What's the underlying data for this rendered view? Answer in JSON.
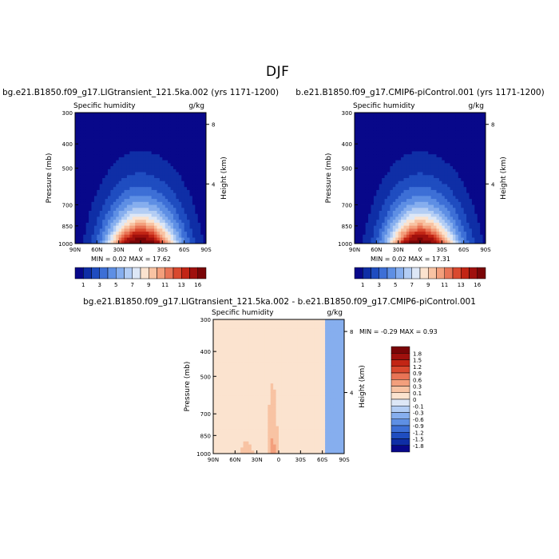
{
  "page": {
    "title": "DJF"
  },
  "chart_data": [
    {
      "type": "heatmap",
      "id": "panel1",
      "title": "bg.e21.B1850.f09_g17.LIGtransient_121.5ka.002 (yrs 1171-1200)",
      "subtitle_left": "Specific humidity",
      "subtitle_right": "g/kg",
      "ylabel": "Pressure (mb)",
      "y2label": "Height (km)",
      "x_ticks": [
        "90N",
        "60N",
        "30N",
        "0",
        "30S",
        "60S",
        "90S"
      ],
      "y_ticks": [
        "300",
        "400",
        "500",
        "700",
        "850",
        "1000"
      ],
      "y2_ticks": [
        "8",
        "4"
      ],
      "stats": {
        "min_label": "MIN =",
        "min": "0.02",
        "max_label": "MAX =",
        "max": "17.62"
      },
      "colorbar": {
        "labels": [
          "1",
          "3",
          "5",
          "7",
          "9",
          "11",
          "13",
          "16"
        ],
        "colors": [
          "#08088a",
          "#0f2ea6",
          "#1f4dc0",
          "#3d6fd6",
          "#5e8fe4",
          "#86aeee",
          "#b3cdf4",
          "#dde7f6",
          "#fbe3cf",
          "#f8c3a3",
          "#f39f7c",
          "#e87456",
          "#d9492f",
          "#c22515",
          "#a0100d",
          "#7a0507"
        ]
      },
      "field": {
        "peak": 17.62,
        "lat_center": 0,
        "width_surface_deg": 48,
        "scale_height_frac": 0.24
      }
    },
    {
      "type": "heatmap",
      "id": "panel2",
      "title": "b.e21.B1850.f09_g17.CMIP6-piControl.001 (yrs 1171-1200)",
      "subtitle_left": "Specific humidity",
      "subtitle_right": "g/kg",
      "ylabel": "Pressure (mb)",
      "y2label": "Height (km)",
      "x_ticks": [
        "90N",
        "60N",
        "30N",
        "0",
        "30S",
        "60S",
        "90S"
      ],
      "y_ticks": [
        "300",
        "400",
        "500",
        "700",
        "850",
        "1000"
      ],
      "y2_ticks": [
        "8",
        "4"
      ],
      "stats": {
        "min_label": "MIN =",
        "min": "0.02",
        "max_label": "MAX =",
        "max": "17.31"
      },
      "colorbar": {
        "labels": [
          "1",
          "3",
          "5",
          "7",
          "9",
          "11",
          "13",
          "16"
        ],
        "colors": [
          "#08088a",
          "#0f2ea6",
          "#1f4dc0",
          "#3d6fd6",
          "#5e8fe4",
          "#86aeee",
          "#b3cdf4",
          "#dde7f6",
          "#fbe3cf",
          "#f8c3a3",
          "#f39f7c",
          "#e87456",
          "#d9492f",
          "#c22515",
          "#a0100d",
          "#7a0507"
        ]
      },
      "field": {
        "peak": 17.31,
        "lat_center": 0,
        "width_surface_deg": 48,
        "scale_height_frac": 0.24
      }
    },
    {
      "type": "heatmap",
      "id": "panel3",
      "title": "bg.e21.B1850.f09_g17.LIGtransient_121.5ka.002 - b.e21.B1850.f09_g17.CMIP6-piControl.001",
      "subtitle_left": "Specific humidity",
      "subtitle_right": "g/kg",
      "ylabel": "Pressure (mb)",
      "y2label": "Height (km)",
      "x_ticks": [
        "90N",
        "60N",
        "30N",
        "0",
        "30S",
        "60S",
        "90S"
      ],
      "y_ticks": [
        "300",
        "400",
        "500",
        "700",
        "850",
        "1000"
      ],
      "y2_ticks": [
        "8",
        "4"
      ],
      "stats": {
        "min_label": "MIN =",
        "min": "-0.29",
        "max_label": "MAX =",
        "max": "0.93"
      },
      "colorbar": {
        "labels": [
          "1.8",
          "1.5",
          "1.2",
          "0.9",
          "0.6",
          "0.3",
          "0.1",
          "0",
          "-0.1",
          "-0.3",
          "-0.6",
          "-0.9",
          "-1.2",
          "-1.5",
          "-1.8"
        ],
        "colors": [
          "#7a0507",
          "#a0100d",
          "#c22515",
          "#d9492f",
          "#e87456",
          "#f39f7c",
          "#f8c3a3",
          "#fbe3cf",
          "#dde7f6",
          "#b3cdf4",
          "#86aeee",
          "#5e8fe4",
          "#3d6fd6",
          "#1f4dc0",
          "#0f2ea6",
          "#08088a"
        ]
      }
    }
  ]
}
